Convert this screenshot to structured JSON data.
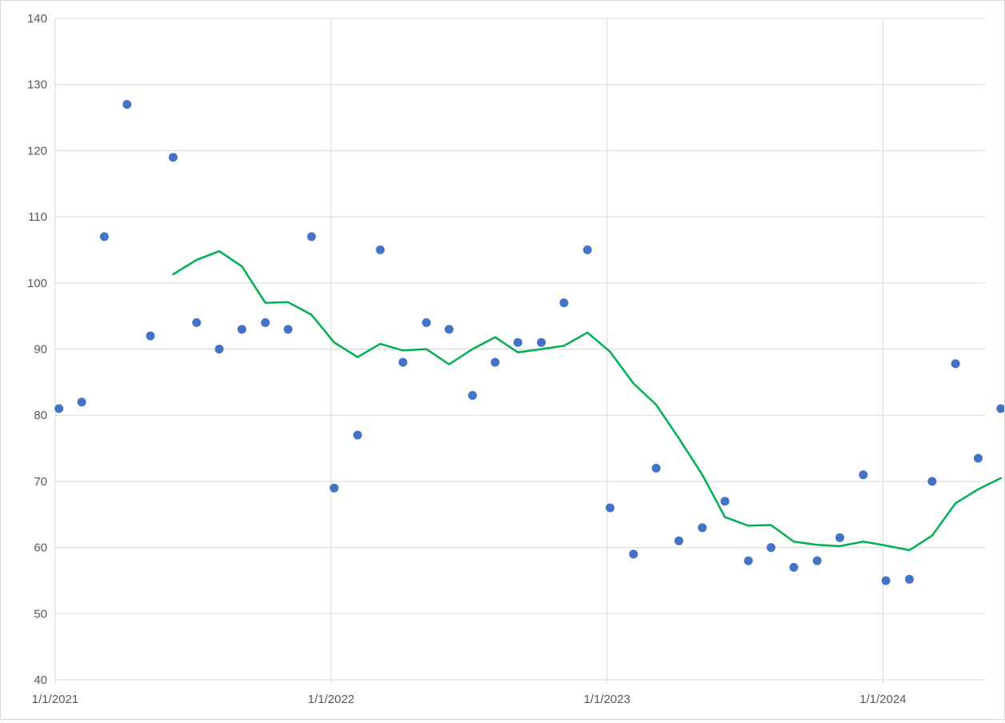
{
  "chart_data": {
    "type": "scatter",
    "x_type": "date",
    "ylim": [
      40,
      140
    ],
    "yticks": [
      40,
      50,
      60,
      70,
      80,
      90,
      100,
      110,
      120,
      130,
      140
    ],
    "xlim": [
      "2021-01-01",
      "2024-05-15"
    ],
    "xticks": [
      "2021-01-01",
      "2022-01-01",
      "2023-01-01",
      "2024-01-01"
    ],
    "xtick_labels": [
      "1/1/2021",
      "1/1/2022",
      "1/1/2023",
      "1/1/2024"
    ],
    "grid": true,
    "legend": "none",
    "series": [
      {
        "kind": "scatter",
        "color": "#4472c4",
        "points": [
          [
            "2021-01-06",
            81
          ],
          [
            "2021-02-05",
            82
          ],
          [
            "2021-03-07",
            107
          ],
          [
            "2021-04-06",
            127
          ],
          [
            "2021-05-07",
            92
          ],
          [
            "2021-06-06",
            119
          ],
          [
            "2021-07-07",
            94
          ],
          [
            "2021-08-06",
            90
          ],
          [
            "2021-09-05",
            93
          ],
          [
            "2021-10-06",
            94
          ],
          [
            "2021-11-05",
            93
          ],
          [
            "2021-12-06",
            107
          ],
          [
            "2022-01-05",
            69
          ],
          [
            "2022-02-05",
            77
          ],
          [
            "2022-03-07",
            105
          ],
          [
            "2022-04-06",
            88
          ],
          [
            "2022-05-07",
            94
          ],
          [
            "2022-06-06",
            93
          ],
          [
            "2022-07-07",
            83
          ],
          [
            "2022-08-06",
            88
          ],
          [
            "2022-09-05",
            91
          ],
          [
            "2022-10-06",
            91
          ],
          [
            "2022-11-05",
            97
          ],
          [
            "2022-12-06",
            105
          ],
          [
            "2023-01-05",
            66
          ],
          [
            "2023-02-05",
            59
          ],
          [
            "2023-03-07",
            72
          ],
          [
            "2023-04-06",
            61
          ],
          [
            "2023-05-07",
            63
          ],
          [
            "2023-06-06",
            67
          ],
          [
            "2023-07-07",
            58
          ],
          [
            "2023-08-06",
            60
          ],
          [
            "2023-09-05",
            57
          ],
          [
            "2023-10-06",
            58
          ],
          [
            "2023-11-05",
            61.5
          ],
          [
            "2023-12-06",
            71
          ],
          [
            "2024-01-05",
            55
          ],
          [
            "2024-02-05",
            55.2
          ],
          [
            "2024-03-06",
            70
          ],
          [
            "2024-04-06",
            87.8
          ],
          [
            "2024-05-06",
            73.5
          ],
          [
            "2024-06-05",
            81
          ]
        ]
      },
      {
        "kind": "line",
        "color": "#00b050",
        "points": [
          [
            "2021-06-06",
            101.3
          ],
          [
            "2021-07-07",
            103.5
          ],
          [
            "2021-08-06",
            104.8
          ],
          [
            "2021-09-05",
            102.5
          ],
          [
            "2021-10-06",
            97.0
          ],
          [
            "2021-11-05",
            97.1
          ],
          [
            "2021-12-06",
            95.2
          ],
          [
            "2022-01-05",
            91.0
          ],
          [
            "2022-02-05",
            88.8
          ],
          [
            "2022-03-07",
            90.8
          ],
          [
            "2022-04-06",
            89.8
          ],
          [
            "2022-05-07",
            90.0
          ],
          [
            "2022-06-06",
            87.7
          ],
          [
            "2022-07-07",
            90.0
          ],
          [
            "2022-08-06",
            91.8
          ],
          [
            "2022-09-05",
            89.5
          ],
          [
            "2022-10-06",
            90.0
          ],
          [
            "2022-11-05",
            90.5
          ],
          [
            "2022-12-06",
            92.5
          ],
          [
            "2023-01-05",
            89.6
          ],
          [
            "2023-02-05",
            84.8
          ],
          [
            "2023-03-07",
            81.6
          ],
          [
            "2023-04-06",
            76.5
          ],
          [
            "2023-05-07",
            71.0
          ],
          [
            "2023-06-06",
            64.6
          ],
          [
            "2023-07-07",
            63.3
          ],
          [
            "2023-08-06",
            63.4
          ],
          [
            "2023-09-05",
            60.9
          ],
          [
            "2023-10-06",
            60.4
          ],
          [
            "2023-11-05",
            60.2
          ],
          [
            "2023-12-06",
            60.9
          ],
          [
            "2024-01-05",
            60.3
          ],
          [
            "2024-02-05",
            59.6
          ],
          [
            "2024-03-06",
            61.8
          ],
          [
            "2024-04-06",
            66.7
          ],
          [
            "2024-05-06",
            68.8
          ],
          [
            "2024-06-05",
            70.5
          ]
        ]
      }
    ]
  }
}
